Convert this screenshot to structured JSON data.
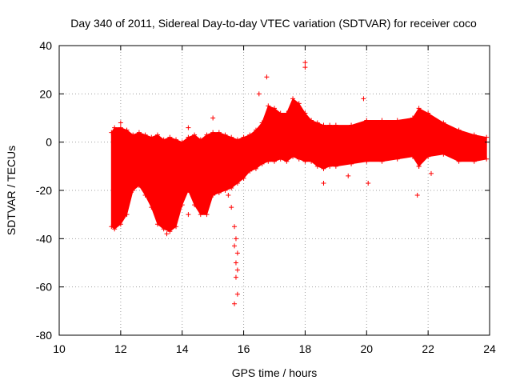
{
  "chart_data": {
    "type": "scatter",
    "title": "Day 340 of 2011, Sidereal Day-to-day VTEC variation (SDTVAR) for receiver coco",
    "xlabel": "GPS time / hours",
    "ylabel": "SDTVAR / TECUs",
    "xlim": [
      10,
      24
    ],
    "ylim": [
      -80,
      40
    ],
    "xticks": [
      10,
      12,
      14,
      16,
      18,
      20,
      22,
      24
    ],
    "yticks": [
      -80,
      -60,
      -40,
      -20,
      0,
      20,
      40
    ],
    "grid": true,
    "marker": "plus",
    "series_color": "#ff0000",
    "envelope": {
      "x": [
        11.7,
        11.8,
        12.0,
        12.2,
        12.4,
        12.6,
        12.8,
        13.0,
        13.2,
        13.4,
        13.6,
        13.8,
        14.0,
        14.2,
        14.4,
        14.6,
        14.8,
        15.0,
        15.2,
        15.4,
        15.6,
        15.8,
        16.0,
        16.2,
        16.4,
        16.6,
        16.8,
        17.0,
        17.2,
        17.4,
        17.6,
        17.8,
        18.0,
        18.2,
        18.4,
        18.6,
        18.8,
        19.0,
        19.5,
        20.0,
        20.5,
        21.0,
        21.5,
        21.7,
        22.0,
        22.5,
        23.0,
        23.5,
        23.9
      ],
      "upper": [
        4,
        6,
        6,
        5,
        3,
        4,
        3,
        2,
        3,
        1,
        2,
        1,
        0,
        2,
        3,
        1,
        3,
        4,
        4,
        3,
        2,
        1,
        2,
        3,
        5,
        8,
        15,
        14,
        12,
        12,
        18,
        16,
        12,
        9,
        8,
        7,
        7,
        7,
        7,
        9,
        9,
        9,
        10,
        14,
        12,
        8,
        5,
        3,
        2
      ],
      "lower": [
        -35,
        -36,
        -34,
        -30,
        -20,
        -18,
        -22,
        -27,
        -34,
        -36,
        -37,
        -35,
        -26,
        -20,
        -26,
        -30,
        -30,
        -22,
        -21,
        -20,
        -19,
        -17,
        -15,
        -12,
        -11,
        -9,
        -8,
        -8,
        -7,
        -8,
        -6,
        -7,
        -8,
        -8,
        -10,
        -11,
        -10,
        -10,
        -9,
        -8,
        -8,
        -7,
        -6,
        -10,
        -6,
        -5,
        -8,
        -8,
        -7
      ]
    },
    "outliers": [
      {
        "x": 18.0,
        "y": 33
      },
      {
        "x": 18.0,
        "y": 31
      },
      {
        "x": 16.75,
        "y": 27
      },
      {
        "x": 19.9,
        "y": 18
      },
      {
        "x": 12.0,
        "y": 8
      },
      {
        "x": 14.2,
        "y": 6
      },
      {
        "x": 15.0,
        "y": 10
      },
      {
        "x": 16.5,
        "y": 20
      },
      {
        "x": 15.5,
        "y": -22
      },
      {
        "x": 15.6,
        "y": -27
      },
      {
        "x": 15.7,
        "y": -35
      },
      {
        "x": 15.75,
        "y": -40
      },
      {
        "x": 15.7,
        "y": -43
      },
      {
        "x": 15.8,
        "y": -46
      },
      {
        "x": 15.75,
        "y": -50
      },
      {
        "x": 15.8,
        "y": -53
      },
      {
        "x": 15.75,
        "y": -56
      },
      {
        "x": 15.8,
        "y": -63
      },
      {
        "x": 15.7,
        "y": -67
      },
      {
        "x": 18.6,
        "y": -17
      },
      {
        "x": 19.4,
        "y": -14
      },
      {
        "x": 20.05,
        "y": -17
      },
      {
        "x": 21.65,
        "y": -22
      },
      {
        "x": 21.7,
        "y": -10
      },
      {
        "x": 22.1,
        "y": -13
      },
      {
        "x": 13.5,
        "y": -38
      },
      {
        "x": 14.2,
        "y": -30
      }
    ]
  }
}
